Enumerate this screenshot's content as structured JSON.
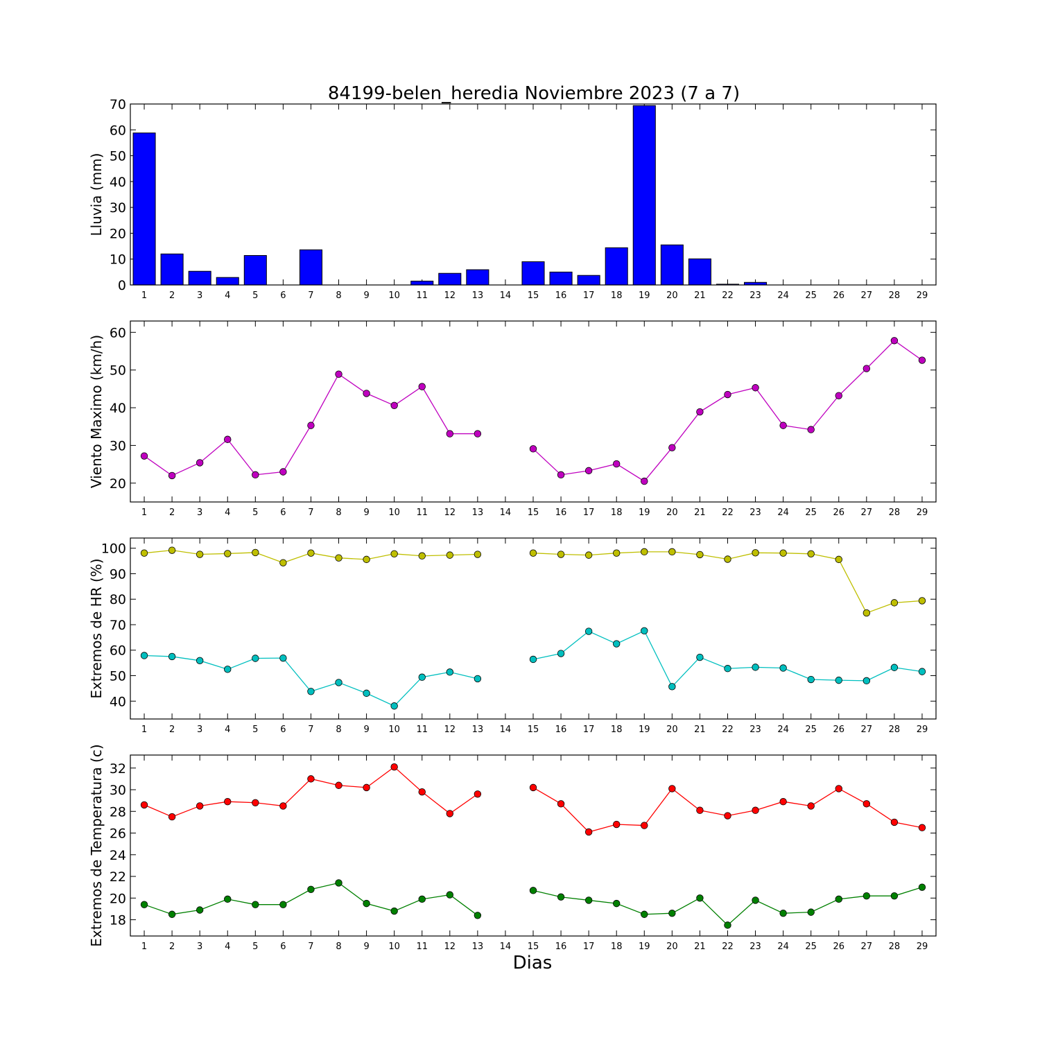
{
  "title": "84199-belen_heredia Noviembre 2023  (7 a 7)",
  "xlabel": "Dias",
  "chart_data": [
    {
      "type": "bar",
      "ylabel": "Lluvia (mm)",
      "ylim": [
        0,
        70
      ],
      "yticks": [
        0,
        10,
        20,
        30,
        40,
        50,
        60,
        70
      ],
      "x": [
        1,
        2,
        3,
        4,
        5,
        6,
        7,
        8,
        9,
        10,
        11,
        12,
        13,
        14,
        15,
        16,
        17,
        18,
        19,
        20,
        21,
        22,
        23,
        24,
        25,
        26,
        27,
        28,
        29
      ],
      "series": [
        {
          "color": "#0000ff",
          "values": [
            58.8,
            12.0,
            5.3,
            2.9,
            11.4,
            0,
            13.6,
            0,
            0,
            0,
            1.5,
            4.5,
            5.9,
            0,
            9.0,
            5.0,
            3.7,
            14.4,
            69.4,
            15.5,
            10.1,
            0.3,
            1.0,
            0,
            0,
            0,
            0,
            0,
            0
          ]
        }
      ]
    },
    {
      "type": "line",
      "ylabel": "Viento Maximo (km/h)",
      "ylim": [
        15,
        63
      ],
      "yticks": [
        20,
        30,
        40,
        50,
        60
      ],
      "x": [
        1,
        2,
        3,
        4,
        5,
        6,
        7,
        8,
        9,
        10,
        11,
        12,
        13,
        14,
        15,
        16,
        17,
        18,
        19,
        20,
        21,
        22,
        23,
        24,
        25,
        26,
        27,
        28,
        29
      ],
      "series": [
        {
          "color": "#bf00bf",
          "values": [
            27.2,
            22.0,
            25.4,
            31.6,
            22.2,
            23.0,
            35.3,
            48.9,
            43.8,
            40.6,
            45.6,
            33.1,
            33.1,
            null,
            29.1,
            22.2,
            23.3,
            25.1,
            20.5,
            29.4,
            38.9,
            43.5,
            45.3,
            35.3,
            34.2,
            43.2,
            50.4,
            57.8,
            52.6
          ]
        }
      ]
    },
    {
      "type": "line",
      "ylabel": "Extremos de HR (%)",
      "ylim": [
        33,
        104
      ],
      "yticks": [
        40,
        50,
        60,
        70,
        80,
        90,
        100
      ],
      "x": [
        1,
        2,
        3,
        4,
        5,
        6,
        7,
        8,
        9,
        10,
        11,
        12,
        13,
        14,
        15,
        16,
        17,
        18,
        19,
        20,
        21,
        22,
        23,
        24,
        25,
        26,
        27,
        28,
        29
      ],
      "series": [
        {
          "color": "#bfbf00",
          "values": [
            98.1,
            99.2,
            97.6,
            97.9,
            98.3,
            94.3,
            98.1,
            96.2,
            95.6,
            97.8,
            97.0,
            97.3,
            97.6,
            null,
            98.1,
            97.6,
            97.3,
            98.1,
            98.6,
            98.6,
            97.5,
            95.7,
            98.2,
            98.1,
            97.8,
            95.6,
            74.6,
            78.6,
            79.4
          ]
        },
        {
          "color": "#00bfbf",
          "values": [
            57.9,
            57.5,
            55.9,
            52.5,
            56.8,
            56.9,
            43.8,
            47.3,
            43.1,
            38.1,
            49.4,
            51.4,
            48.8,
            null,
            56.4,
            58.7,
            67.4,
            62.5,
            67.6,
            45.7,
            57.2,
            52.8,
            53.3,
            53.0,
            48.5,
            48.2,
            48.0,
            53.2,
            51.6
          ]
        }
      ]
    },
    {
      "type": "line",
      "ylabel": "Extremos de Temperatura (c)",
      "ylim": [
        16.5,
        33.2
      ],
      "yticks": [
        18,
        20,
        22,
        24,
        26,
        28,
        30,
        32
      ],
      "x": [
        1,
        2,
        3,
        4,
        5,
        6,
        7,
        8,
        9,
        10,
        11,
        12,
        13,
        14,
        15,
        16,
        17,
        18,
        19,
        20,
        21,
        22,
        23,
        24,
        25,
        26,
        27,
        28,
        29
      ],
      "series": [
        {
          "color": "#ff0000",
          "values": [
            28.6,
            27.5,
            28.5,
            28.9,
            28.8,
            28.5,
            31.0,
            30.4,
            30.2,
            32.1,
            29.8,
            27.8,
            29.6,
            null,
            30.2,
            28.7,
            26.1,
            26.8,
            26.7,
            30.1,
            28.1,
            27.6,
            28.1,
            28.9,
            28.5,
            30.1,
            28.7,
            27.0,
            26.5
          ]
        },
        {
          "color": "#008000",
          "values": [
            19.4,
            18.5,
            18.9,
            19.9,
            19.4,
            19.4,
            20.8,
            21.4,
            19.5,
            18.8,
            19.9,
            20.3,
            18.4,
            null,
            20.7,
            20.1,
            19.8,
            19.5,
            18.5,
            18.6,
            20.0,
            17.5,
            19.8,
            18.6,
            18.7,
            19.9,
            20.2,
            20.2,
            21.0
          ]
        }
      ]
    }
  ]
}
